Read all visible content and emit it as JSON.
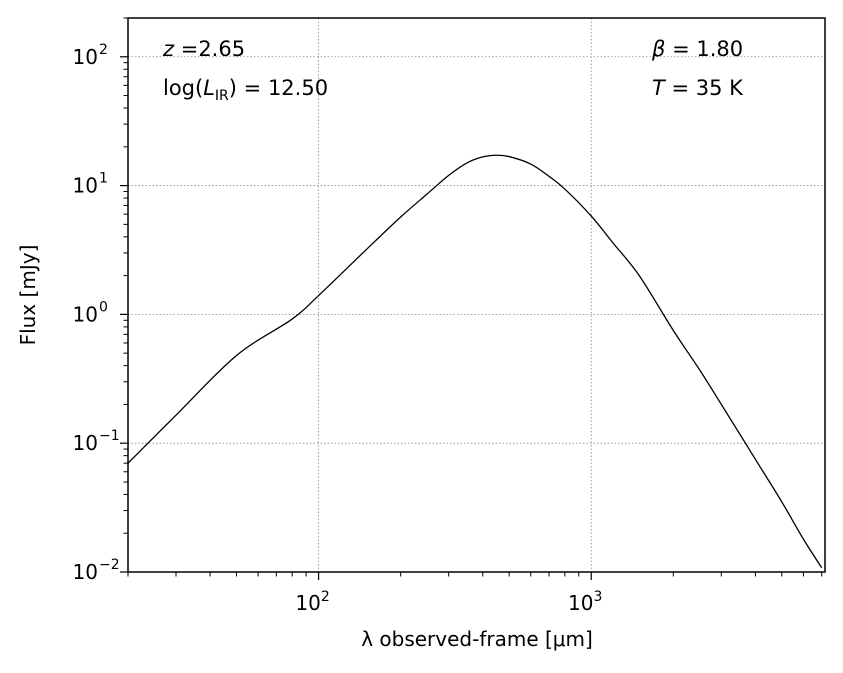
{
  "chart_data": {
    "type": "line",
    "xlabel": "λ observed-frame [μm]",
    "ylabel": "Flux [mJy]",
    "x_scale": "log",
    "y_scale": "log",
    "xlim": [
      20.0,
      7200.0
    ],
    "ylim": [
      0.01,
      200.0
    ],
    "x_ticks": [
      {
        "value": 100,
        "base": "10",
        "exp": "2"
      },
      {
        "value": 1000,
        "base": "10",
        "exp": "3"
      }
    ],
    "y_ticks": [
      {
        "value": 0.01,
        "base": "10",
        "exp": "−2"
      },
      {
        "value": 0.1,
        "base": "10",
        "exp": "−1"
      },
      {
        "value": 1,
        "base": "10",
        "exp": "0"
      },
      {
        "value": 10,
        "base": "10",
        "exp": "1"
      },
      {
        "value": 100,
        "base": "10",
        "exp": "2"
      }
    ],
    "grid": true,
    "line_color": "#000000",
    "series": [
      {
        "x": [
          20.0,
          30.0,
          50.0,
          80.0,
          100.0,
          150.0,
          200.0,
          250.0,
          300.0,
          350.0,
          400.0,
          450.0,
          500.0,
          600.0,
          700.0,
          800.0,
          1000.0,
          1200.0,
          1500.0,
          2000.0,
          2500.0,
          3000.0,
          4000.0,
          5000.0,
          6000.0,
          7000.0
        ],
        "y": [
          0.07,
          0.165,
          0.48,
          0.92,
          1.4,
          3.2,
          5.7,
          8.6,
          12.0,
          15.0,
          16.7,
          17.2,
          16.8,
          14.7,
          11.8,
          9.4,
          5.8,
          3.6,
          2.0,
          0.75,
          0.37,
          0.2,
          0.075,
          0.035,
          0.018,
          0.0108
        ]
      }
    ],
    "annotations": {
      "z": {
        "symbol": "z",
        "eq": " =",
        "value": "2.65"
      },
      "lir": {
        "prefix": "log(",
        "symbol": "L",
        "sub": "IR",
        "suffix": ")",
        "eq": " = ",
        "value": "12.50"
      },
      "beta": {
        "symbol": "β",
        "eq": " = ",
        "value": "1.80"
      },
      "temp": {
        "symbol": "T",
        "eq": " = ",
        "value": "35 K"
      }
    }
  }
}
